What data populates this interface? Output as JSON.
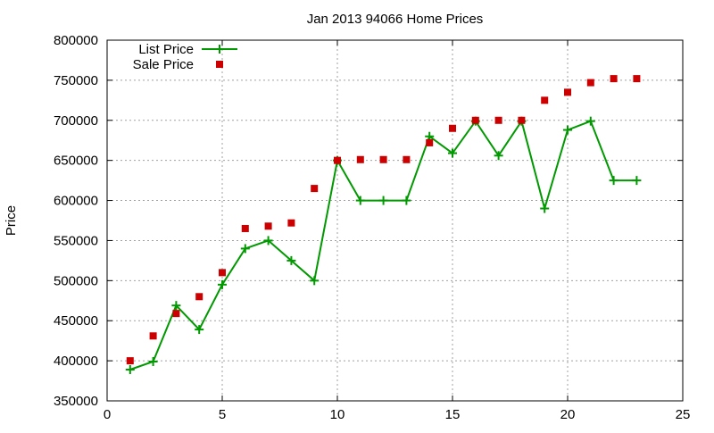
{
  "chart_data": {
    "type": "line",
    "title": "Jan 2013 94066 Home Prices",
    "xlabel": "",
    "ylabel": "Price",
    "xlim": [
      0,
      25
    ],
    "ylim": [
      350000,
      800000
    ],
    "xticks": [
      0,
      5,
      10,
      15,
      20,
      25
    ],
    "yticks": [
      350000,
      400000,
      450000,
      500000,
      550000,
      600000,
      650000,
      700000,
      750000,
      800000
    ],
    "grid": true,
    "legend_position": "top-left",
    "series": [
      {
        "name": "List Price",
        "style": "lines+points",
        "marker": "plus",
        "color": "#009900",
        "points": [
          [
            1,
            389000
          ],
          [
            2,
            399000
          ],
          [
            3,
            469000
          ],
          [
            4,
            439000
          ],
          [
            5,
            495000
          ],
          [
            6,
            540000
          ],
          [
            7,
            550000
          ],
          [
            8,
            525000
          ],
          [
            9,
            500000
          ],
          [
            10,
            650000
          ],
          [
            11,
            600000
          ],
          [
            12,
            600000
          ],
          [
            13,
            600000
          ],
          [
            14,
            680000
          ],
          [
            15,
            659000
          ],
          [
            16,
            699000
          ],
          [
            17,
            656000
          ],
          [
            18,
            699000
          ],
          [
            19,
            590000
          ],
          [
            20,
            688000
          ],
          [
            21,
            699000
          ],
          [
            22,
            625000
          ],
          [
            23,
            625000
          ]
        ]
      },
      {
        "name": "Sale Price",
        "style": "points",
        "marker": "square",
        "color": "#cc0000",
        "points": [
          [
            1,
            400000
          ],
          [
            2,
            431000
          ],
          [
            3,
            459000
          ],
          [
            4,
            480000
          ],
          [
            5,
            510000
          ],
          [
            6,
            565000
          ],
          [
            7,
            568000
          ],
          [
            8,
            572000
          ],
          [
            9,
            615000
          ],
          [
            10,
            650000
          ],
          [
            11,
            651000
          ],
          [
            12,
            651000
          ],
          [
            13,
            651000
          ],
          [
            14,
            672000
          ],
          [
            15,
            690000
          ],
          [
            16,
            700000
          ],
          [
            17,
            700000
          ],
          [
            18,
            700000
          ],
          [
            19,
            725000
          ],
          [
            20,
            735000
          ],
          [
            21,
            747000
          ],
          [
            22,
            752000
          ],
          [
            23,
            752000
          ]
        ]
      }
    ]
  }
}
